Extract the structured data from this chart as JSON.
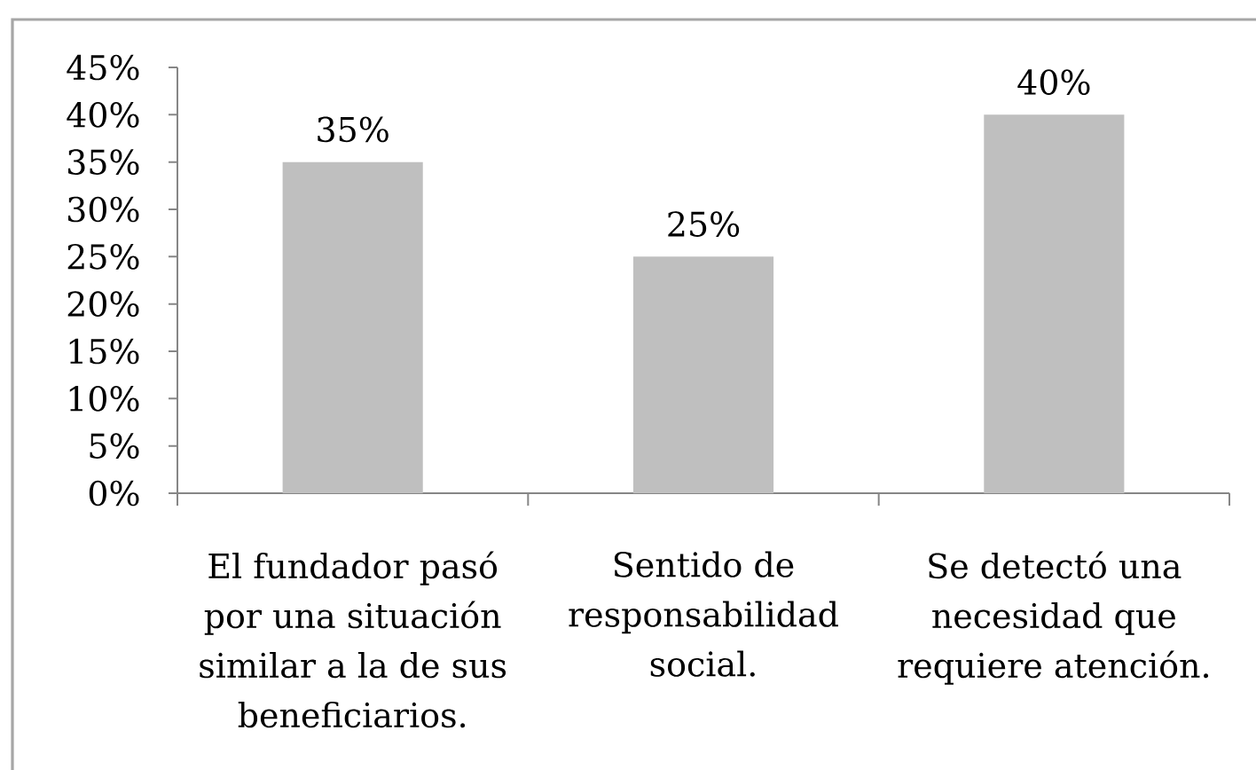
{
  "chart_data": {
    "type": "bar",
    "categories": [
      "El fundador pasó por una situación similar a la de sus beneficiarios.",
      "Sentido de responsabilidad social.",
      "Se detectó una necesidad que requiere atención."
    ],
    "values": [
      35,
      25,
      40
    ],
    "value_labels": [
      "35%",
      "25%",
      "40%"
    ],
    "color": "#bfbfbf",
    "ylim": [
      0,
      45
    ],
    "yticks": [
      {
        "value": 0,
        "label": "0%"
      },
      {
        "value": 5,
        "label": "5%"
      },
      {
        "value": 10,
        "label": "10%"
      },
      {
        "value": 15,
        "label": "15%"
      },
      {
        "value": 20,
        "label": "20%"
      },
      {
        "value": 25,
        "label": "25%"
      },
      {
        "value": 30,
        "label": "30%"
      },
      {
        "value": 35,
        "label": "35%"
      },
      {
        "value": 40,
        "label": "40%"
      },
      {
        "value": 45,
        "label": "45%"
      }
    ]
  }
}
